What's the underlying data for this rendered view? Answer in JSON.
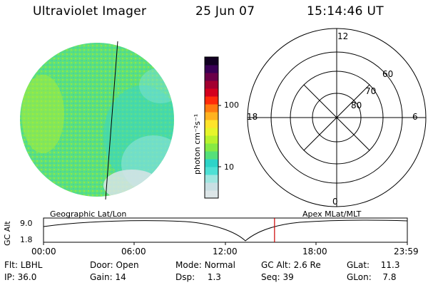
{
  "header": {
    "title": "Ultraviolet Imager",
    "date": "25 Jun 07",
    "time": "15:14:46 UT"
  },
  "colorbar": {
    "label": "photon cm⁻²s⁻¹",
    "ticks": [
      "100",
      "10"
    ],
    "colors": [
      "#dde6e8",
      "#c9dfe3",
      "#9fe6e0",
      "#4ee0d5",
      "#2dd4c8",
      "#55e07a",
      "#86ea44",
      "#b8f22d",
      "#e6f52a",
      "#ffe42a",
      "#ffb21f",
      "#ff7a10",
      "#ff2b0a",
      "#d4001e",
      "#a30030",
      "#6b0048",
      "#3a0055",
      "#120022"
    ]
  },
  "polar": {
    "mlt_labels": [
      "12",
      "18",
      "6",
      "0"
    ],
    "lat_labels": [
      "60",
      "70",
      "80"
    ]
  },
  "timeline": {
    "left_label": "Geographic Lat/Lon",
    "right_label": "Apex MLat/MLT",
    "y_axis_label": "GC Alt",
    "y_ticks": [
      "9.0",
      "1.8"
    ],
    "x_ticks": [
      "00:00",
      "06:00",
      "12:00",
      "18:00",
      "23:59"
    ],
    "current_time_fraction": 0.635
  },
  "status": {
    "flt_label": "Flt:",
    "flt_value": "LBHL",
    "ip_label": "IP:",
    "ip_value": "36.0",
    "door_label": "Door:",
    "door_value": "Open",
    "gain_label": "Gain:",
    "gain_value": "14",
    "mode_label": "Mode:",
    "mode_value": "Normal",
    "dsp_label": "Dsp:",
    "dsp_value": "1.3",
    "gcalt_label": "GC Alt:",
    "gcalt_value": "2.6 Re",
    "seq_label": "Seq:",
    "seq_value": "39",
    "glat_label": "GLat:",
    "glat_value": "11.3",
    "glon_label": "GLon:",
    "glon_value": "7.8"
  }
}
